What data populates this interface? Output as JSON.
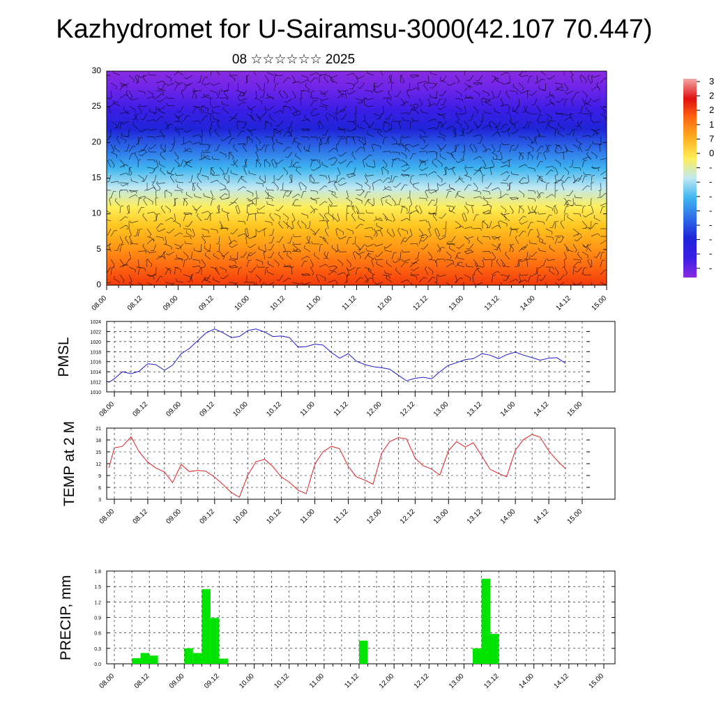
{
  "page": {
    "title": "Kazhydromet for U-Sairamsu-3000(42.107 70.447)",
    "subtitle": "08 ☆☆☆☆☆☆ 2025"
  },
  "time_ticks": [
    "08.00",
    "08.12",
    "09.00",
    "09.12",
    "10.00",
    "10.12",
    "11.00",
    "11.12",
    "12.00",
    "12.12",
    "13.00",
    "13.12",
    "14.00",
    "14.12",
    "15.00"
  ],
  "colors": {
    "pmsl_line": "#1a1ad6",
    "temp_line": "#e02020",
    "precip_bar": "#00e400",
    "grid": "#000000"
  },
  "colorbar": {
    "visible_labels": [
      "3",
      "2",
      "2",
      "1",
      "7",
      "0",
      "-",
      "-",
      "-",
      "-",
      "-",
      "-",
      "-",
      "-"
    ]
  },
  "chart_data": [
    {
      "type": "heatmap",
      "name": "section",
      "ylim": [
        0,
        30
      ],
      "yticks": [
        0,
        5,
        10,
        15,
        20,
        25,
        30
      ],
      "x_range_days": [
        0,
        7
      ],
      "overlay": "wind barbs",
      "gradient_top_to_bottom": [
        "#8a2be2",
        "#6a24e8",
        "#3a1ee6",
        "#1f25d8",
        "#2d6fe8",
        "#3fb5f0",
        "#bfe8f2",
        "#ffee58",
        "#ffc41e",
        "#ff9a16",
        "#ff6a10",
        "#f23a0c"
      ]
    },
    {
      "type": "line",
      "ylabel": "PMSL",
      "ylim": [
        1010,
        1024
      ],
      "yticks": [
        "1010",
        "1012",
        "1014",
        "1016",
        "1018",
        "1020",
        "1022",
        "1024"
      ],
      "x_range_days": [
        0,
        7
      ],
      "x": [
        -0.08,
        0.0,
        0.12,
        0.25,
        0.37,
        0.5,
        0.62,
        0.75,
        0.87,
        1.0,
        1.12,
        1.25,
        1.37,
        1.5,
        1.62,
        1.75,
        1.87,
        2.0,
        2.12,
        2.25,
        2.37,
        2.5,
        2.62,
        2.75,
        2.87,
        3.0,
        3.12,
        3.25,
        3.37,
        3.5,
        3.62,
        3.75,
        3.87,
        4.0,
        4.12,
        4.25,
        4.37,
        4.5,
        4.62,
        4.75,
        4.87,
        5.0,
        5.12,
        5.25,
        5.37,
        5.5,
        5.62,
        5.75,
        5.87,
        6.0,
        6.12,
        6.25,
        6.37,
        6.5,
        6.62,
        6.75
      ],
      "values": [
        1011.9,
        1012.6,
        1014.0,
        1013.6,
        1014.1,
        1015.6,
        1015.4,
        1014.3,
        1015.3,
        1017.6,
        1018.6,
        1020.2,
        1021.7,
        1022.5,
        1021.8,
        1020.8,
        1021.0,
        1022.2,
        1022.5,
        1021.9,
        1021.0,
        1021.1,
        1020.8,
        1018.9,
        1019.0,
        1019.5,
        1019.3,
        1017.8,
        1016.7,
        1017.6,
        1016.1,
        1015.4,
        1015.0,
        1014.8,
        1014.5,
        1013.3,
        1012.2,
        1012.7,
        1012.9,
        1012.6,
        1014.0,
        1015.3,
        1015.8,
        1016.4,
        1016.6,
        1017.6,
        1017.3,
        1016.6,
        1017.4,
        1017.9,
        1017.3,
        1016.8,
        1016.3,
        1016.7,
        1016.8,
        1015.7
      ]
    },
    {
      "type": "line",
      "ylabel": "TEMP at 2 M",
      "ylim": [
        3,
        21
      ],
      "yticks": [
        "3",
        "6",
        "9",
        "12",
        "15",
        "18",
        "21"
      ],
      "x_range_days": [
        0,
        7
      ],
      "x": [
        -0.08,
        0.0,
        0.12,
        0.25,
        0.37,
        0.5,
        0.62,
        0.75,
        0.87,
        1.0,
        1.12,
        1.25,
        1.37,
        1.5,
        1.62,
        1.75,
        1.87,
        2.0,
        2.12,
        2.25,
        2.37,
        2.5,
        2.62,
        2.75,
        2.87,
        3.0,
        3.12,
        3.25,
        3.37,
        3.5,
        3.62,
        3.75,
        3.87,
        4.0,
        4.12,
        4.25,
        4.37,
        4.5,
        4.62,
        4.75,
        4.87,
        5.0,
        5.12,
        5.25,
        5.37,
        5.5,
        5.62,
        5.75,
        5.87,
        6.0,
        6.12,
        6.25,
        6.37,
        6.5,
        6.62,
        6.75
      ],
      "values": [
        11.0,
        16.0,
        16.4,
        18.8,
        15.0,
        12.4,
        10.9,
        9.9,
        7.2,
        11.8,
        10.0,
        10.3,
        10.1,
        8.6,
        6.8,
        4.7,
        3.5,
        9.2,
        12.5,
        13.1,
        11.3,
        8.6,
        7.3,
        5.3,
        4.4,
        11.9,
        15.0,
        16.4,
        15.8,
        11.3,
        8.7,
        7.8,
        6.8,
        14.7,
        17.6,
        18.6,
        18.3,
        13.4,
        11.5,
        10.6,
        9.1,
        15.3,
        17.6,
        16.2,
        17.3,
        13.9,
        10.6,
        9.5,
        8.7,
        15.4,
        18.1,
        19.4,
        18.7,
        15.2,
        12.9,
        10.7
      ]
    },
    {
      "type": "bar",
      "ylabel": "PRECIP, mm",
      "ylim": [
        0,
        1.8
      ],
      "yticks": [
        "0.0",
        "0.3",
        "0.6",
        "0.9",
        "1.2",
        "1.5",
        "1.8"
      ],
      "x_range_days": [
        0,
        7
      ],
      "bar_width_days": 0.125,
      "x": [
        0.25,
        0.375,
        0.5,
        1.0,
        1.125,
        1.25,
        1.375,
        1.5,
        3.5,
        5.125,
        5.25,
        5.375
      ],
      "values": [
        0.11,
        0.21,
        0.16,
        0.3,
        0.21,
        1.45,
        0.89,
        0.1,
        0.45,
        0.3,
        1.65,
        0.58
      ]
    }
  ]
}
